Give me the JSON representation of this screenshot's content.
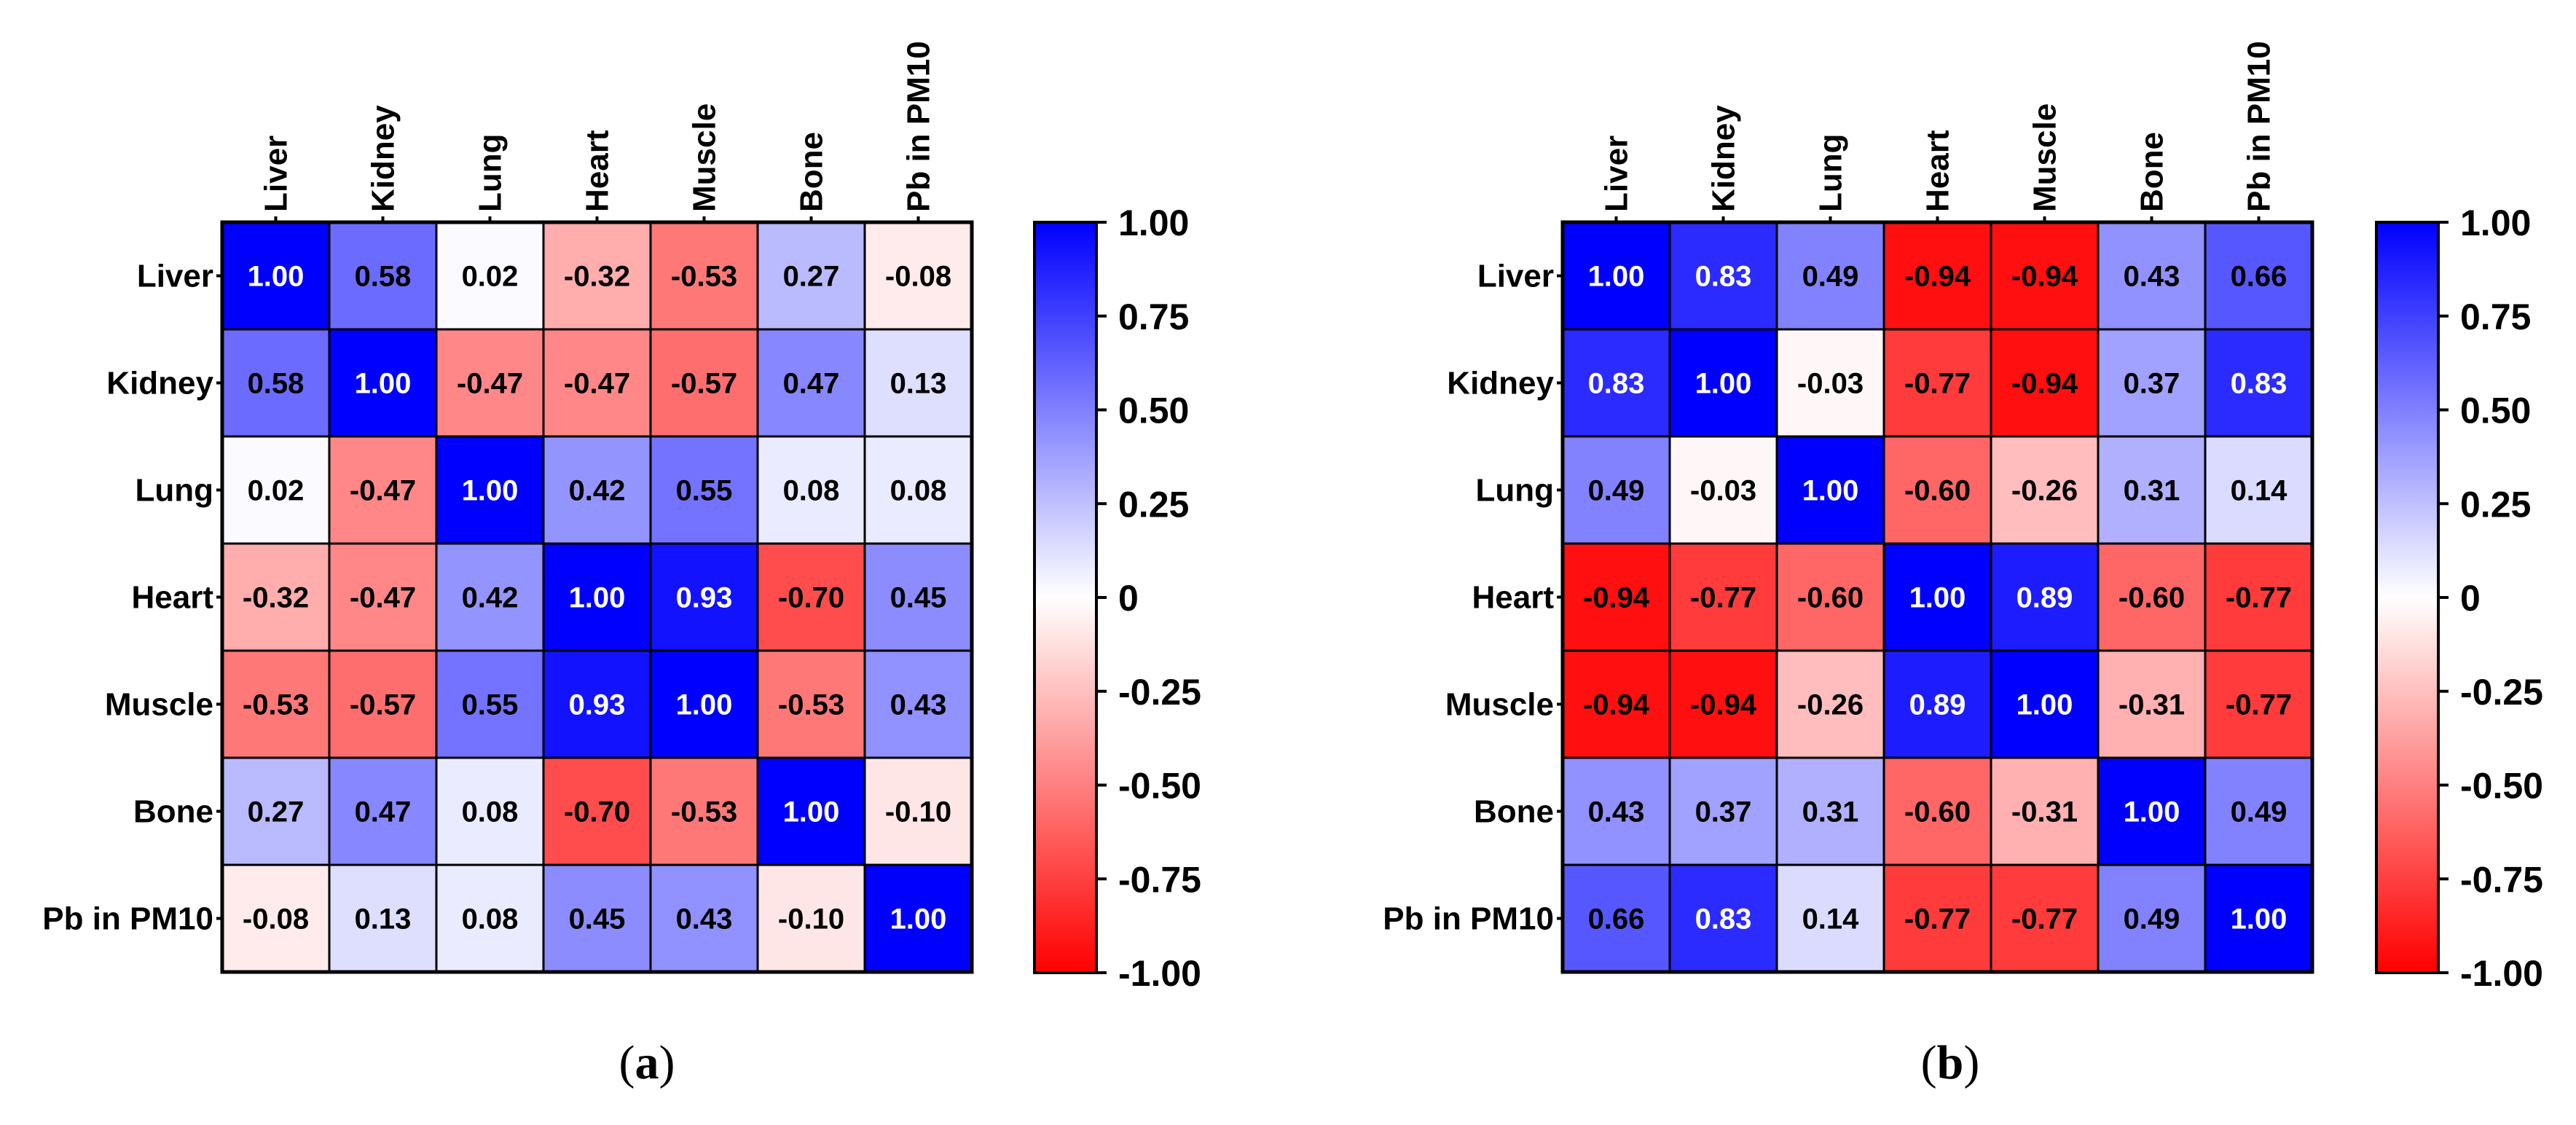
{
  "chart_data": [
    {
      "type": "heatmap",
      "panel_label": "(a)",
      "panel_letter": "a",
      "rows": [
        "Liver",
        "Kidney",
        "Lung",
        "Heart",
        "Muscle",
        "Bone",
        "Pb in PM10"
      ],
      "columns": [
        "Liver",
        "Kidney",
        "Lung",
        "Heart",
        "Muscle",
        "Bone",
        "Pb in PM10"
      ],
      "values": [
        [
          1.0,
          0.58,
          0.02,
          -0.32,
          -0.53,
          0.27,
          -0.08
        ],
        [
          0.58,
          1.0,
          -0.47,
          -0.47,
          -0.57,
          0.47,
          0.13
        ],
        [
          0.02,
          -0.47,
          1.0,
          0.42,
          0.55,
          0.08,
          0.08
        ],
        [
          -0.32,
          -0.47,
          0.42,
          1.0,
          0.93,
          -0.7,
          0.45
        ],
        [
          -0.53,
          -0.57,
          0.55,
          0.93,
          1.0,
          -0.53,
          0.43
        ],
        [
          0.27,
          0.47,
          0.08,
          -0.7,
          -0.53,
          1.0,
          -0.1
        ],
        [
          -0.08,
          0.13,
          0.08,
          0.45,
          0.43,
          -0.1,
          1.0
        ]
      ],
      "value_range": [
        -1.0,
        1.0
      ],
      "colorbar_ticks": [
        "1.00",
        "0.75",
        "0.50",
        "0.25",
        "0",
        "-0.25",
        "-0.50",
        "-0.75",
        "-1.00"
      ],
      "colorbar_tick_values": [
        1.0,
        0.75,
        0.5,
        0.25,
        0,
        -0.25,
        -0.5,
        -0.75,
        -1.0
      ]
    },
    {
      "type": "heatmap",
      "panel_label": "(b)",
      "panel_letter": "b",
      "rows": [
        "Liver",
        "Kidney",
        "Lung",
        "Heart",
        "Muscle",
        "Bone",
        "Pb in PM10"
      ],
      "columns": [
        "Liver",
        "Kidney",
        "Lung",
        "Heart",
        "Muscle",
        "Bone",
        "Pb in PM10"
      ],
      "values": [
        [
          1.0,
          0.83,
          0.49,
          -0.94,
          -0.94,
          0.43,
          0.66
        ],
        [
          0.83,
          1.0,
          -0.03,
          -0.77,
          -0.94,
          0.37,
          0.83
        ],
        [
          0.49,
          -0.03,
          1.0,
          -0.6,
          -0.26,
          0.31,
          0.14
        ],
        [
          -0.94,
          -0.77,
          -0.6,
          1.0,
          0.89,
          -0.6,
          -0.77
        ],
        [
          -0.94,
          -0.94,
          -0.26,
          0.89,
          1.0,
          -0.31,
          -0.77
        ],
        [
          0.43,
          0.37,
          0.31,
          -0.6,
          -0.31,
          1.0,
          0.49
        ],
        [
          0.66,
          0.83,
          0.14,
          -0.77,
          -0.77,
          0.49,
          1.0
        ]
      ],
      "value_range": [
        -1.0,
        1.0
      ],
      "colorbar_ticks": [
        "1.00",
        "0.75",
        "0.50",
        "0.25",
        "0",
        "-0.25",
        "-0.50",
        "-0.75",
        "-1.00"
      ],
      "colorbar_tick_values": [
        1.0,
        0.75,
        0.5,
        0.25,
        0,
        -0.25,
        -0.5,
        -0.75,
        -1.0
      ]
    }
  ],
  "colors": {
    "positive": "#0000ff",
    "neutral": "#ffffff",
    "negative": "#ff0000",
    "text_dark": "#000000",
    "text_light": "#ffffff",
    "grid": "#000000"
  }
}
